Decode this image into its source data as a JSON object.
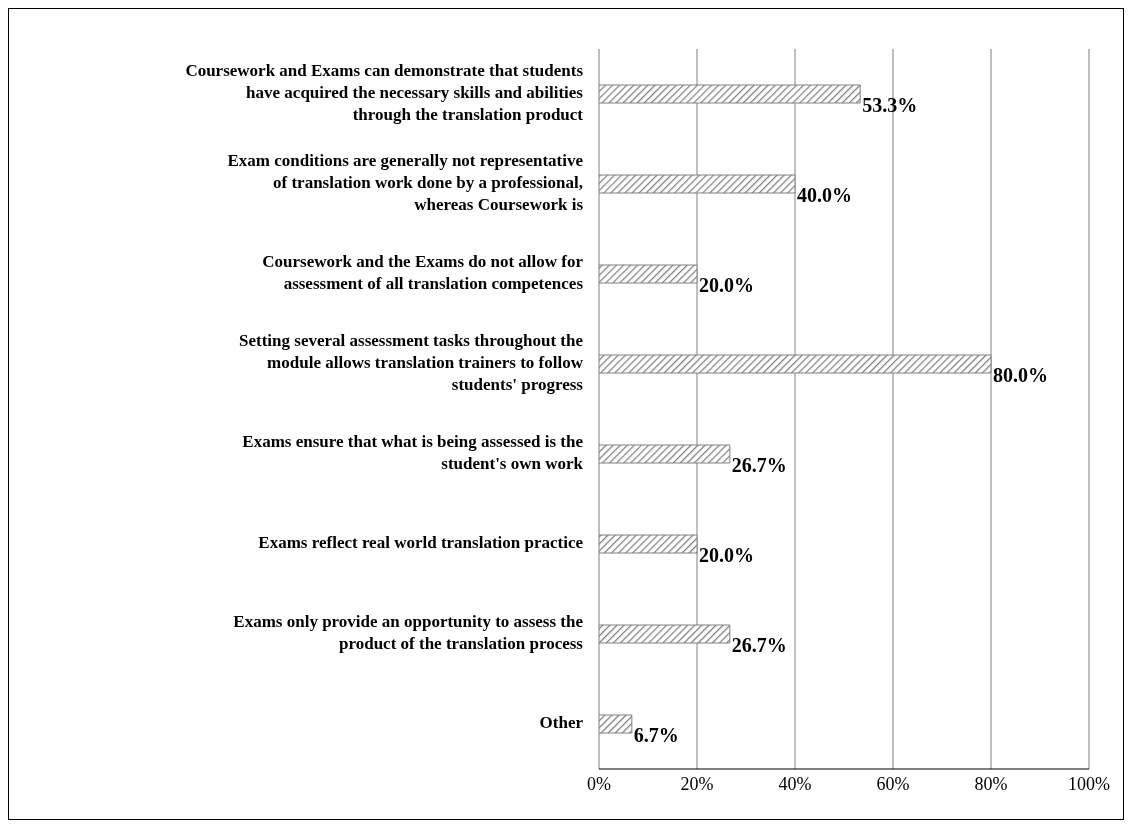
{
  "chart_data": {
    "type": "bar",
    "orientation": "horizontal",
    "categories": [
      "Coursework and Exams can demonstrate that students have acquired the necessary skills and abilities through the translation product",
      "Exam conditions are generally not representative of translation work done by a professional, whereas Coursework is",
      "Coursework and the Exams do not allow for assessment of all translation competences",
      "Setting several assessment tasks throughout the module allows translation trainers to follow students' progress",
      "Exams ensure that what is being assessed is the student's own work",
      "Exams reflect real world translation practice",
      "Exams only provide an opportunity to assess the product of the translation process",
      "Other"
    ],
    "values": [
      53.3,
      40.0,
      20.0,
      80.0,
      26.7,
      20.0,
      26.7,
      6.7
    ],
    "value_labels": [
      "53.3%",
      "40.0%",
      "20.0%",
      "80.0%",
      "26.7%",
      "20.0%",
      "26.7%",
      "6.7%"
    ],
    "color": "#808080",
    "xlim": [
      0,
      100
    ],
    "xticks": [
      {
        "value": 0,
        "label": "0%"
      },
      {
        "value": 20,
        "label": "20%"
      },
      {
        "value": 40,
        "label": "40%"
      },
      {
        "value": 60,
        "label": "60%"
      },
      {
        "value": 80,
        "label": "80%"
      },
      {
        "value": 100,
        "label": "100%"
      }
    ],
    "grid": "x",
    "legend": false
  }
}
